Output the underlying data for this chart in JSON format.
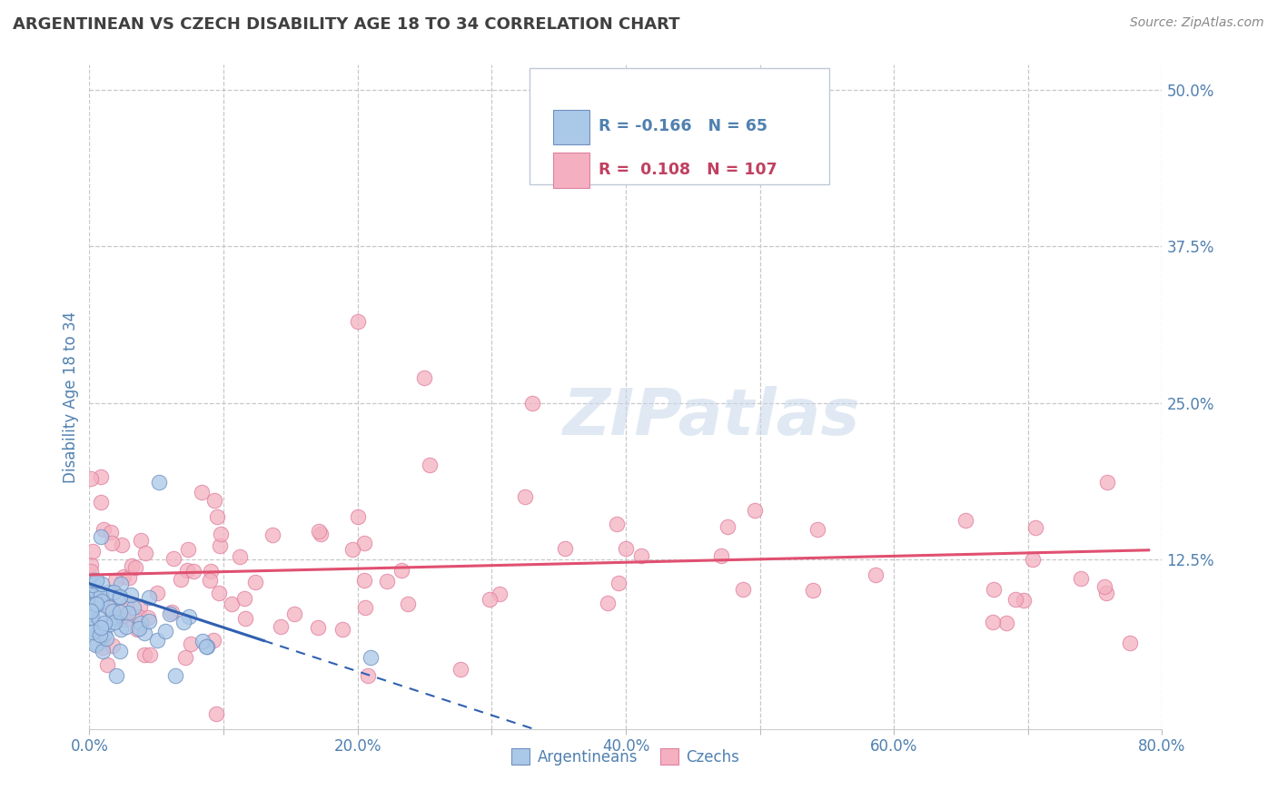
{
  "title": "ARGENTINEAN VS CZECH DISABILITY AGE 18 TO 34 CORRELATION CHART",
  "source": "Source: ZipAtlas.com",
  "ylabel": "Disability Age 18 to 34",
  "xlim": [
    0.0,
    0.8
  ],
  "ylim": [
    -0.01,
    0.52
  ],
  "xtick_labels": [
    "0.0%",
    "",
    "20.0%",
    "",
    "40.0%",
    "",
    "60.0%",
    "",
    "80.0%"
  ],
  "xtick_vals": [
    0.0,
    0.1,
    0.2,
    0.3,
    0.4,
    0.5,
    0.6,
    0.7,
    0.8
  ],
  "ytick_labels": [
    "12.5%",
    "25.0%",
    "37.5%",
    "50.0%"
  ],
  "ytick_vals": [
    0.125,
    0.25,
    0.375,
    0.5
  ],
  "blue_R": -0.166,
  "blue_N": 65,
  "pink_R": 0.108,
  "pink_N": 107,
  "legend_label_blue": "Argentineans",
  "legend_label_pink": "Czechs",
  "blue_color": "#aac8e8",
  "pink_color": "#f4b0c0",
  "blue_scatter_edge": "#7090c0",
  "pink_scatter_edge": "#e080a0",
  "blue_line_color": "#3060b0",
  "pink_line_color": "#e05070",
  "watermark_text": "ZIPatlas",
  "background_color": "#ffffff",
  "grid_color": "#c8c8c8",
  "title_color": "#404040",
  "axis_label_color": "#5080b0",
  "tick_label_color": "#5080b0"
}
